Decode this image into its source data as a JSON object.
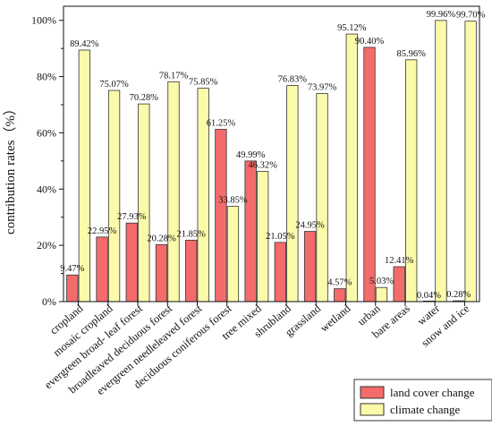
{
  "chart_data": {
    "type": "bar",
    "ylabel": "contribution rates（%）",
    "ylim": [
      0,
      105
    ],
    "y_ticks": [
      0,
      20,
      40,
      60,
      80,
      100
    ],
    "y_tick_labels": [
      "0%",
      "20%",
      "40%",
      "60%",
      "80%",
      "100%"
    ],
    "grid": false,
    "legend_position": "bottom-right",
    "categories": [
      "cropland",
      "mosaic cropland",
      "evergreen broad- leaf forest",
      "broadleaved deciduous forest",
      "evergreen needleleaved forest",
      "deciduous coniferous forest",
      "tree mixed",
      "shrubland",
      "grassland",
      "wetland",
      "urban",
      "bare areas",
      "water",
      "snow and ice"
    ],
    "series": [
      {
        "name": "land cover change",
        "color": "#f46b6b",
        "values": [
          9.47,
          22.95,
          27.93,
          20.28,
          21.85,
          61.25,
          49.99,
          21.05,
          24.95,
          4.57,
          90.4,
          12.41,
          0.04,
          0.28
        ],
        "labels": [
          "9.47%",
          "22.95%",
          "27.93%",
          "20.28%",
          "21.85%",
          "61.25%",
          "49.99%",
          "21.05%",
          "24.95%",
          "4.57%",
          "90.40%",
          "12.41%",
          "0.04%",
          "0.28%"
        ]
      },
      {
        "name": "climate change",
        "color": "#fafaaa",
        "values": [
          89.42,
          75.07,
          70.28,
          78.17,
          75.85,
          33.85,
          46.32,
          76.83,
          73.97,
          95.12,
          5.03,
          85.96,
          99.96,
          99.7
        ],
        "labels": [
          "89.42%",
          "75.07%",
          "70.28%",
          "78.17%",
          "75.85%",
          "33.85%",
          "46.32%",
          "76.83%",
          "73.97%",
          "95.12%",
          "5.03%",
          "85.96%",
          "99.96%",
          "99.70%"
        ]
      }
    ]
  }
}
